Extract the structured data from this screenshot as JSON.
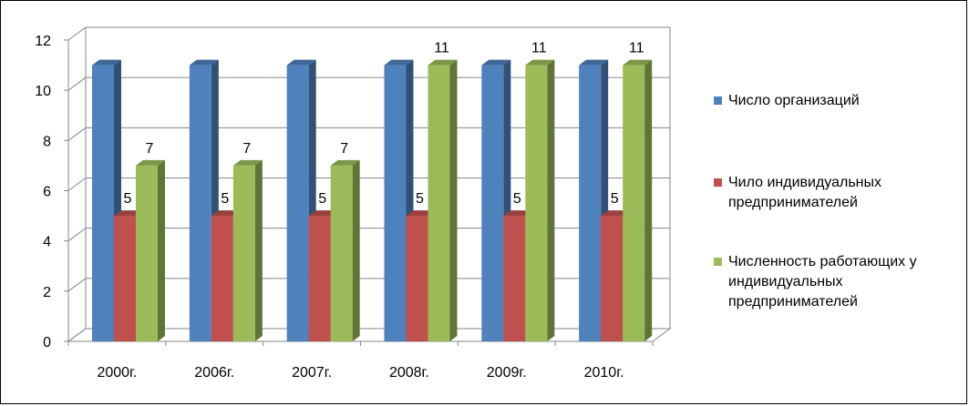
{
  "chart_data": {
    "type": "bar",
    "categories": [
      "2000г.",
      "2006г.",
      "2007г.",
      "2008г.",
      "2009г.",
      "2010г."
    ],
    "series": [
      {
        "name": "Число организаций",
        "values": [
          11,
          11,
          11,
          11,
          11,
          11
        ],
        "color": "#4F81BD",
        "labels": [
          "",
          "",
          "",
          "",
          "",
          ""
        ]
      },
      {
        "name": "Чило индивидуальных предпринимателей",
        "values": [
          5,
          5,
          5,
          5,
          5,
          5
        ],
        "color": "#C0504D",
        "labels": [
          "5",
          "5",
          "5",
          "5",
          "5",
          "5"
        ]
      },
      {
        "name": "Численность работающих у индивидуальных предпринимателей",
        "values": [
          7,
          7,
          7,
          11,
          11,
          11
        ],
        "color": "#9BBB59",
        "labels": [
          "7",
          "7",
          "7",
          "11",
          "11",
          "11"
        ]
      }
    ],
    "ylim": [
      0,
      12
    ],
    "yticks": [
      "0",
      "2",
      "4",
      "6",
      "8",
      "10",
      "12"
    ],
    "grid": true,
    "legend_position": "right",
    "style": "3d-clustered-column"
  }
}
